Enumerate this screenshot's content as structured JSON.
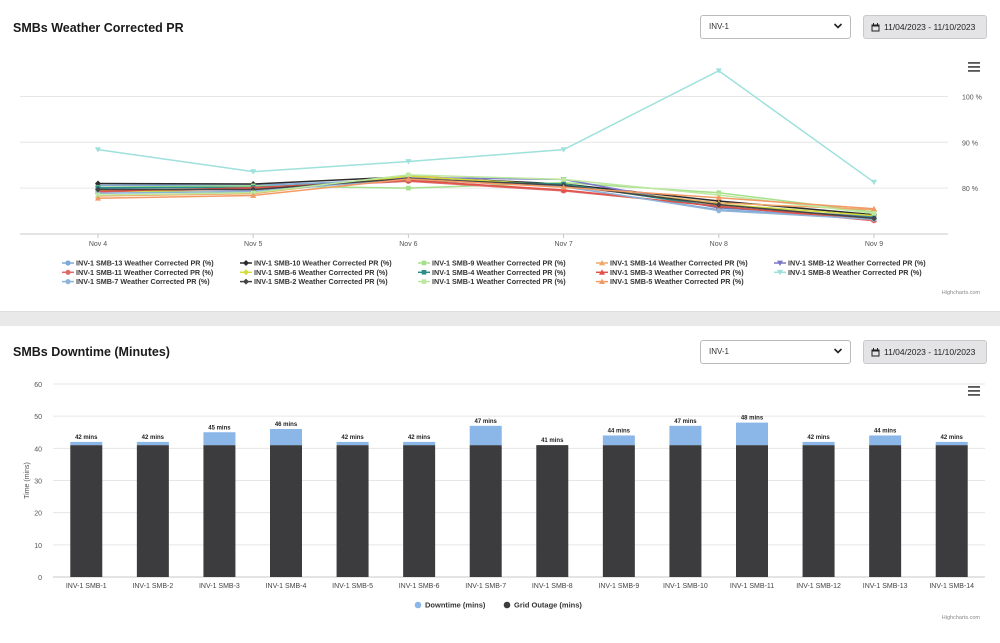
{
  "pr_card": {
    "title": "SMBs Weather Corrected PR",
    "select_value": "INV-1",
    "date_range": "11/04/2023 - 11/10/2023",
    "credit": "Highcharts.com"
  },
  "downtime_card": {
    "title": "SMBs Downtime (Minutes)",
    "select_value": "INV-1",
    "date_range": "11/04/2023 - 11/10/2023",
    "credit": "Highcharts.com"
  },
  "chart_data": [
    {
      "type": "line",
      "title": "SMBs Weather Corrected PR",
      "categories": [
        "Nov 4",
        "Nov 5",
        "Nov 6",
        "Nov 7",
        "Nov 8",
        "Nov 9"
      ],
      "ylim": [
        70,
        111
      ],
      "yticks": [
        80,
        90,
        100
      ],
      "ytick_labels": [
        "80 %",
        "90 %",
        "100 %"
      ],
      "grid": true,
      "legend": "bottom",
      "series": [
        {
          "name": "INV-1 SMB-13 Weather Corrected PR (%)",
          "color": "#7fa8d6",
          "marker": "circle",
          "values": [
            80.6,
            80.6,
            81.9,
            80.3,
            75.3,
            73.5
          ]
        },
        {
          "name": "INV-1 SMB-10 Weather Corrected PR (%)",
          "color": "#2b2b2b",
          "marker": "diamond",
          "values": [
            81.0,
            80.9,
            82.5,
            80.9,
            77.2,
            74.2
          ]
        },
        {
          "name": "INV-1 SMB-9 Weather Corrected PR (%)",
          "color": "#a6e08a",
          "marker": "square",
          "values": [
            80.2,
            80.5,
            80.0,
            81.2,
            79.0,
            74.8
          ]
        },
        {
          "name": "INV-1 SMB-14 Weather Corrected PR (%)",
          "color": "#f0a868",
          "marker": "triangle",
          "values": [
            78.3,
            78.8,
            82.8,
            80.4,
            76.8,
            75.3
          ]
        },
        {
          "name": "INV-1 SMB-12 Weather Corrected PR (%)",
          "color": "#7b76c9",
          "marker": "triangle-down",
          "values": [
            79.8,
            79.6,
            82.3,
            81.9,
            75.7,
            73.8
          ]
        },
        {
          "name": "INV-1 SMB-11 Weather Corrected PR (%)",
          "color": "#e06a6a",
          "marker": "circle",
          "values": [
            79.2,
            79.9,
            81.5,
            79.4,
            76.1,
            72.9
          ]
        },
        {
          "name": "INV-1 SMB-6 Weather Corrected PR (%)",
          "color": "#d2dc3a",
          "marker": "diamond",
          "values": [
            79.5,
            79.0,
            82.6,
            80.6,
            76.5,
            74.0
          ]
        },
        {
          "name": "INV-1 SMB-4 Weather Corrected PR (%)",
          "color": "#2a8f88",
          "marker": "square",
          "values": [
            80.1,
            80.2,
            81.7,
            80.9,
            75.9,
            73.6
          ]
        },
        {
          "name": "INV-1 SMB-3 Weather Corrected PR (%)",
          "color": "#e0524a",
          "marker": "triangle",
          "values": [
            79.3,
            80.1,
            81.7,
            79.6,
            76.0,
            73.1
          ]
        },
        {
          "name": "INV-1 SMB-8 Weather Corrected PR (%)",
          "color": "#9ee0dc",
          "marker": "triangle-down",
          "values": [
            88.4,
            83.6,
            85.8,
            88.4,
            105.6,
            81.3
          ]
        },
        {
          "name": "INV-1 SMB-7 Weather Corrected PR (%)",
          "color": "#8eb4d8",
          "marker": "circle",
          "values": [
            78.9,
            79.3,
            82.0,
            80.4,
            75.1,
            73.2
          ]
        },
        {
          "name": "INV-1 SMB-2 Weather Corrected PR (%)",
          "color": "#444444",
          "marker": "diamond",
          "values": [
            79.7,
            79.7,
            82.1,
            80.6,
            76.4,
            73.4
          ]
        },
        {
          "name": "INV-1 SMB-1 Weather Corrected PR (%)",
          "color": "#bde8a0",
          "marker": "square",
          "values": [
            78.5,
            79.0,
            82.9,
            81.9,
            78.5,
            74.5
          ]
        },
        {
          "name": "INV-1 SMB-5 Weather Corrected PR (%)",
          "color": "#f29a66",
          "marker": "triangle",
          "values": [
            77.8,
            78.4,
            82.0,
            80.2,
            77.9,
            75.5
          ]
        }
      ]
    },
    {
      "type": "bar",
      "stacked": true,
      "title": "SMBs Downtime (Minutes)",
      "ylabel": "Time (mins)",
      "ylim": [
        0,
        60
      ],
      "yticks": [
        0,
        10,
        20,
        30,
        40,
        50,
        60
      ],
      "grid": true,
      "legend": "bottom",
      "categories": [
        "INV-1 SMB-1",
        "INV-1 SMB-2",
        "INV-1 SMB-3",
        "INV-1 SMB-4",
        "INV-1 SMB-5",
        "INV-1 SMB-6",
        "INV-1 SMB-7",
        "INV-1 SMB-8",
        "INV-1 SMB-9",
        "INV-1 SMB-10",
        "INV-1 SMB-11",
        "INV-1 SMB-12",
        "INV-1 SMB-13",
        "INV-1 SMB-14"
      ],
      "series": [
        {
          "name": "Downtime (mins)",
          "color": "#8ab6e8",
          "values": [
            1,
            1,
            4,
            5,
            1,
            1,
            6,
            0,
            3,
            6,
            7,
            1,
            3,
            1
          ]
        },
        {
          "name": "Grid Outage (mins)",
          "color": "#3c3c3e",
          "values": [
            41,
            41,
            41,
            41,
            41,
            41,
            41,
            41,
            41,
            41,
            41,
            41,
            41,
            41
          ]
        }
      ],
      "total_labels": [
        "42 mins",
        "42 mins",
        "45 mins",
        "46 mins",
        "42 mins",
        "42 mins",
        "47 mins",
        "41 mins",
        "44 mins",
        "47 mins",
        "48 mins",
        "42 mins",
        "44 mins",
        "42 mins"
      ]
    }
  ]
}
